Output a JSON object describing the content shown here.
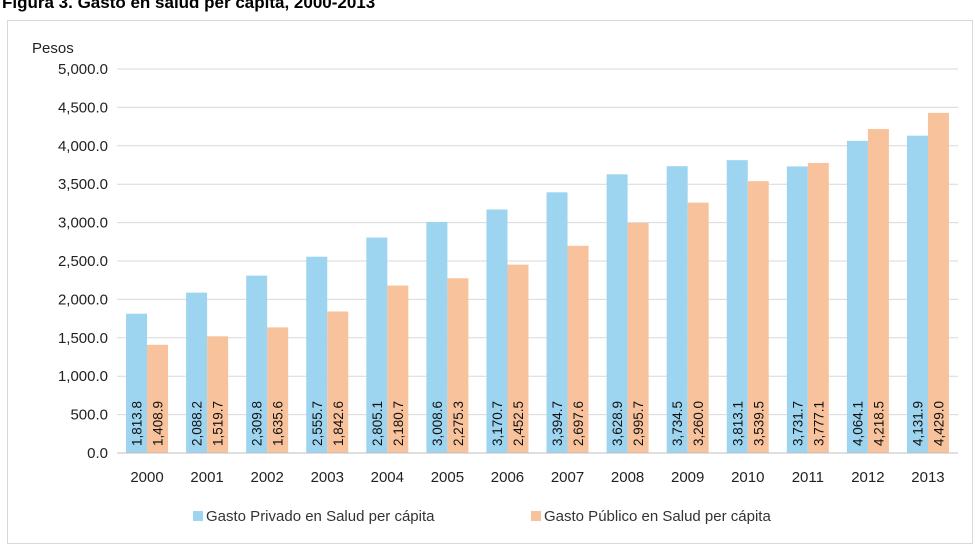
{
  "figure_title": "Figura 3. Gasto en salud per cápita, 2000-2013",
  "chart_data": {
    "type": "bar",
    "title": "Figura 3. Gasto en salud per cápita, 2000-2013",
    "ylabel": "Pesos",
    "xlabel": "",
    "ylim": [
      0,
      5000
    ],
    "ytick_step": 500,
    "yticks": [
      "0.0",
      "500.0",
      "1,000.0",
      "1,500.0",
      "2,000.0",
      "2,500.0",
      "3,000.0",
      "3,500.0",
      "4,000.0",
      "4,500.0",
      "5,000.0"
    ],
    "grid": true,
    "legend_position": "bottom",
    "categories": [
      "2000",
      "2001",
      "2002",
      "2003",
      "2004",
      "2005",
      "2006",
      "2007",
      "2008",
      "2009",
      "2010",
      "2011",
      "2012",
      "2013"
    ],
    "series": [
      {
        "name": "Gasto Privado en Salud per cápita",
        "color": "#9dd4ef",
        "values": [
          1813.8,
          2088.2,
          2309.8,
          2555.7,
          2805.1,
          3008.6,
          3170.7,
          3394.7,
          3628.9,
          3734.5,
          3813.1,
          3731.7,
          4064.1,
          4131.9
        ],
        "labels": [
          "1,813.8",
          "2,088.2",
          "2,309.8",
          "2,555.7",
          "2,805.1",
          "3,008.6",
          "3,170.7",
          "3,394.7",
          "3,628.9",
          "3,734.5",
          "3,813.1",
          "3,731.7",
          "4,064.1",
          "4,131.9"
        ]
      },
      {
        "name": "Gasto Público en Salud per cápita",
        "color": "#f8c39c",
        "values": [
          1408.9,
          1519.7,
          1635.6,
          1842.6,
          2180.7,
          2275.3,
          2452.5,
          2697.6,
          2995.7,
          3260.0,
          3539.5,
          3777.1,
          4218.5,
          4429.0
        ],
        "labels": [
          "1,408.9",
          "1,519.7",
          "1,635.6",
          "1,842.6",
          "2,180.7",
          "2,275.3",
          "2,452.5",
          "2,697.6",
          "2,995.7",
          "3,260.0",
          "3,539.5",
          "3,777.1",
          "4,218.5",
          "4,429.0"
        ]
      }
    ]
  }
}
